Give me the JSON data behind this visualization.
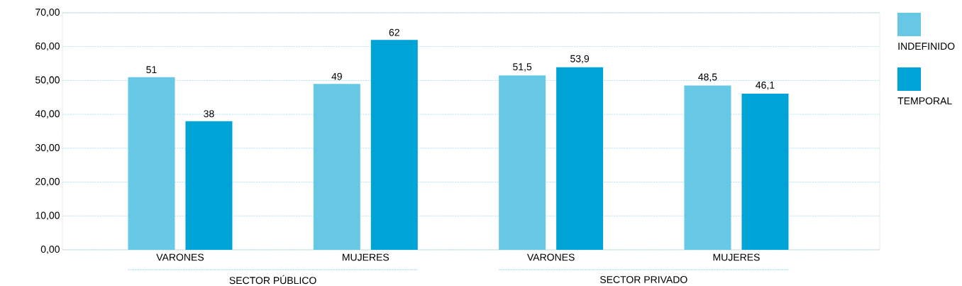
{
  "chart_data": {
    "type": "bar",
    "categories": [
      "VARONES",
      "MUJERES",
      "VARONES",
      "MUJERES"
    ],
    "series": [
      {
        "name": "INDEFINIDO",
        "color": "#67c8e6",
        "values": [
          51,
          49,
          51.5,
          48.5
        ],
        "value_labels": [
          "51",
          "49",
          "51,5",
          "48,5"
        ]
      },
      {
        "name": "TEMPORAL",
        "color": "#00a3d6",
        "values": [
          38,
          62,
          53.9,
          46.1
        ],
        "value_labels": [
          "38",
          "62",
          "53,9",
          "46,1"
        ]
      }
    ],
    "ylim": [
      0,
      70
    ],
    "yticks": [
      {
        "value": 0,
        "label": "0,00"
      },
      {
        "value": 10,
        "label": "10,00"
      },
      {
        "value": 20,
        "label": "20,00"
      },
      {
        "value": 30,
        "label": "30,00"
      },
      {
        "value": 40,
        "label": "40,00"
      },
      {
        "value": 50,
        "label": "50,00"
      },
      {
        "value": 60,
        "label": "60,00"
      },
      {
        "value": 70,
        "label": "70,00"
      }
    ],
    "grid": "y",
    "legend": "right",
    "annotations": [
      "SECTOR PÚBLICO",
      "SECTOR PRIVADO"
    ]
  }
}
